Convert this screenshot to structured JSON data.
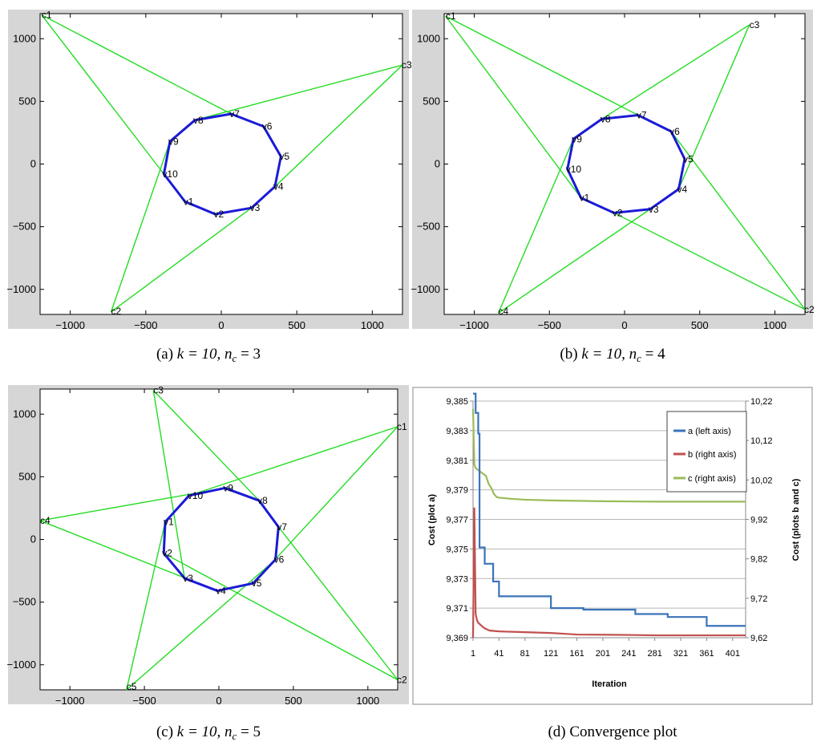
{
  "colors": {
    "frame_bg": "#d6d6d6",
    "edge": "#22dd22",
    "polygon": "#1a1ad8",
    "axis": "#000000",
    "series_a": "#3b73b9",
    "series_b": "#c0504d",
    "series_c": "#9bbb59",
    "grid": "#b8b8b8",
    "legend_border": "#444444"
  },
  "chart_data": [
    {
      "type": "scatter",
      "panel": "a",
      "caption_letter": "(a)",
      "caption_params": "k = 10, n",
      "caption_sub": "c",
      "caption_value": "= 3",
      "xlim": [
        -1200,
        1200
      ],
      "ylim": [
        -1200,
        1200
      ],
      "xticks": [
        -1000,
        -500,
        0,
        500,
        1000
      ],
      "yticks": [
        -1000,
        -500,
        0,
        500,
        1000
      ],
      "vertices": [
        {
          "label": "v1",
          "x": -240,
          "y": -300
        },
        {
          "label": "v2",
          "x": -40,
          "y": -400
        },
        {
          "label": "v3",
          "x": 200,
          "y": -350
        },
        {
          "label": "v4",
          "x": 355,
          "y": -180
        },
        {
          "label": "v5",
          "x": 395,
          "y": 60
        },
        {
          "label": "v6",
          "x": 280,
          "y": 300
        },
        {
          "label": "v7",
          "x": 65,
          "y": 400
        },
        {
          "label": "v8",
          "x": -175,
          "y": 350
        },
        {
          "label": "v9",
          "x": -340,
          "y": 180
        },
        {
          "label": "v10",
          "x": -380,
          "y": -80
        }
      ],
      "centers": [
        {
          "label": "c1",
          "x": -1190,
          "y": 1190,
          "edges": [
            "v10",
            "v7"
          ]
        },
        {
          "label": "c2",
          "x": -730,
          "y": -1180,
          "edges": [
            "v9",
            "v3"
          ]
        },
        {
          "label": "c3",
          "x": 1200,
          "y": 790,
          "edges": [
            "v8",
            "v4"
          ]
        }
      ]
    },
    {
      "type": "scatter",
      "panel": "b",
      "caption_letter": "(b)",
      "caption_params": "k = 10, n",
      "caption_sub": "c",
      "caption_value": "= 4",
      "xlim": [
        -1200,
        1200
      ],
      "ylim": [
        -1200,
        1200
      ],
      "xticks": [
        -1000,
        -500,
        0,
        500,
        1000
      ],
      "yticks": [
        -1000,
        -500,
        0,
        500,
        1000
      ],
      "vertices": [
        {
          "label": "v1",
          "x": -290,
          "y": -270
        },
        {
          "label": "v2",
          "x": -70,
          "y": -390
        },
        {
          "label": "v3",
          "x": 170,
          "y": -360
        },
        {
          "label": "v4",
          "x": 360,
          "y": -200
        },
        {
          "label": "v5",
          "x": 400,
          "y": 40
        },
        {
          "label": "v6",
          "x": 310,
          "y": 260
        },
        {
          "label": "v7",
          "x": 90,
          "y": 390
        },
        {
          "label": "v8",
          "x": -150,
          "y": 360
        },
        {
          "label": "v9",
          "x": -340,
          "y": 200
        },
        {
          "label": "v10",
          "x": -380,
          "y": -40
        }
      ],
      "centers": [
        {
          "label": "c1",
          "x": -1190,
          "y": 1180,
          "edges": [
            "v1",
            "v7"
          ]
        },
        {
          "label": "c2",
          "x": 1200,
          "y": -1160,
          "edges": [
            "v2",
            "v6"
          ]
        },
        {
          "label": "c3",
          "x": 830,
          "y": 1110,
          "edges": [
            "v8",
            "v4"
          ]
        },
        {
          "label": "c4",
          "x": -840,
          "y": -1190,
          "edges": [
            "v9",
            "v3"
          ]
        }
      ]
    },
    {
      "type": "scatter",
      "panel": "c",
      "caption_letter": "(c)",
      "caption_params": "k = 10, n",
      "caption_sub": "c",
      "caption_value": "= 5",
      "xlim": [
        -1200,
        1200
      ],
      "ylim": [
        -1200,
        1200
      ],
      "xticks": [
        -1000,
        -500,
        0,
        500,
        1000
      ],
      "yticks": [
        -1000,
        -500,
        0,
        500,
        1000
      ],
      "vertices": [
        {
          "label": "v1",
          "x": -360,
          "y": 140
        },
        {
          "label": "v2",
          "x": -370,
          "y": -110
        },
        {
          "label": "v3",
          "x": -230,
          "y": -310
        },
        {
          "label": "v4",
          "x": -10,
          "y": -410
        },
        {
          "label": "v5",
          "x": 230,
          "y": -350
        },
        {
          "label": "v6",
          "x": 380,
          "y": -160
        },
        {
          "label": "v7",
          "x": 400,
          "y": 100
        },
        {
          "label": "v8",
          "x": 270,
          "y": 310
        },
        {
          "label": "v9",
          "x": 40,
          "y": 410
        },
        {
          "label": "v10",
          "x": -200,
          "y": 350
        }
      ],
      "centers": [
        {
          "label": "c1",
          "x": 1200,
          "y": 900,
          "edges": [
            "v10",
            "v5"
          ]
        },
        {
          "label": "c2",
          "x": 1200,
          "y": -1120,
          "edges": [
            "v2",
            "v7"
          ]
        },
        {
          "label": "c3",
          "x": -440,
          "y": 1190,
          "edges": [
            "v3",
            "v8"
          ]
        },
        {
          "label": "c4",
          "x": -1200,
          "y": 150,
          "edges": [
            "v9",
            "v4"
          ]
        },
        {
          "label": "c5",
          "x": -620,
          "y": -1200,
          "edges": [
            "v1",
            "v6"
          ]
        }
      ]
    },
    {
      "type": "line",
      "panel": "d",
      "caption_letter": "(d)",
      "caption_title": "Convergence plot",
      "xlabel": "Iteration",
      "ylabel_left": "Cost (plot a)",
      "ylabel_right": "Cost (plots b and c)",
      "ylim_left": [
        9.369,
        9.385
      ],
      "ylim_right": [
        9.62,
        10.22
      ],
      "xlim": [
        1,
        421
      ],
      "xtick_values": [
        1,
        41,
        81,
        121,
        161,
        201,
        241,
        281,
        321,
        361,
        401
      ],
      "xtick_labels": [
        "1",
        "41",
        "81",
        "121",
        "161",
        "201",
        "241",
        "281",
        "321",
        "361",
        "401"
      ],
      "ytick_values_left": [
        9.369,
        9.371,
        9.373,
        9.375,
        9.377,
        9.379,
        9.381,
        9.383,
        9.385
      ],
      "ytick_labels_left": [
        "9,369",
        "9,371",
        "9,373",
        "9,375",
        "9,377",
        "9,379",
        "9,381",
        "9,383",
        "9,385"
      ],
      "ytick_values_right": [
        9.62,
        9.72,
        9.82,
        9.92,
        10.02,
        10.12,
        10.22
      ],
      "ytick_labels_right": [
        "9,62",
        "9,72",
        "9,82",
        "9,92",
        "10,02",
        "10,12",
        "10,22"
      ],
      "legend": [
        "a (left axis)",
        "b (right axis)",
        "c (right axis)"
      ],
      "legend_position": "top-right",
      "series": [
        {
          "name": "a (left axis)",
          "axis": "left",
          "x": [
            1,
            5,
            5,
            9,
            9,
            11,
            11,
            19,
            19,
            32,
            32,
            41,
            41,
            49,
            49,
            121,
            121,
            171,
            171,
            251,
            251,
            301,
            301,
            361,
            361,
            401,
            401,
            421
          ],
          "y": [
            9.3855,
            9.3855,
            9.3842,
            9.3842,
            9.3828,
            9.3828,
            9.3751,
            9.3751,
            9.374,
            9.374,
            9.3728,
            9.3728,
            9.3718,
            9.3718,
            9.3718,
            9.3718,
            9.371,
            9.371,
            9.3709,
            9.3709,
            9.3706,
            9.3706,
            9.3704,
            9.3704,
            9.3698,
            9.3698,
            9.3698,
            9.3698
          ]
        },
        {
          "name": "b (right axis)",
          "axis": "right",
          "x": [
            1,
            3,
            5,
            7,
            9,
            13,
            17,
            21,
            27,
            41,
            81,
            121,
            141,
            161,
            241,
            281,
            421
          ],
          "y": [
            9.62,
            9.95,
            9.68,
            9.665,
            9.658,
            9.652,
            9.646,
            9.642,
            9.638,
            9.636,
            9.634,
            9.632,
            9.63,
            9.628,
            9.627,
            9.626,
            9.626
          ]
        },
        {
          "name": "c (right axis)",
          "axis": "right",
          "x": [
            1,
            3,
            5,
            9,
            13,
            17,
            21,
            25,
            29,
            33,
            37,
            41,
            61,
            81,
            121,
            161,
            201,
            281,
            421
          ],
          "y": [
            10.2,
            10.06,
            10.05,
            10.045,
            10.04,
            10.035,
            10.03,
            10.01,
            10.0,
            9.985,
            9.977,
            9.975,
            9.972,
            9.97,
            9.968,
            9.967,
            9.966,
            9.965,
            9.965
          ]
        }
      ]
    }
  ]
}
